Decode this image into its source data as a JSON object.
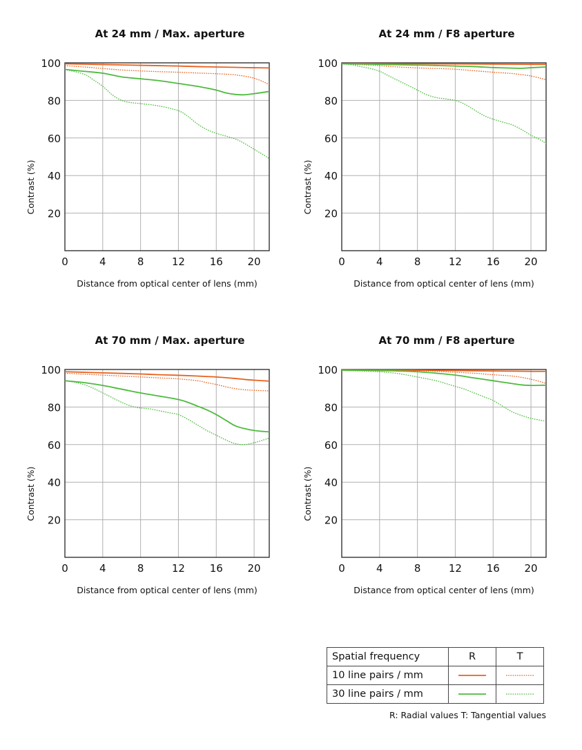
{
  "colors": {
    "ten_lp": "#e8601c",
    "thirty_lp": "#4cba3c",
    "axis": "#222222",
    "grid": "#b0b0b0"
  },
  "chart_data": [
    {
      "type": "line",
      "title": "At 24 mm / Max. aperture",
      "xlabel": "Distance from optical center of lens (mm)",
      "ylabel": "Contrast (%)",
      "xlim": [
        0,
        21.6
      ],
      "ylim": [
        0,
        100
      ],
      "xticks": [
        0,
        4,
        8,
        12,
        16,
        20
      ],
      "yticks": [
        20,
        40,
        60,
        80,
        100
      ],
      "grid": true,
      "series": [
        {
          "key": "10R",
          "x": [
            0,
            2,
            4,
            6,
            8,
            10,
            12,
            14,
            16,
            18,
            20,
            21.6
          ],
          "y": [
            99.5,
            99.3,
            99.1,
            98.9,
            98.7,
            98.5,
            98.3,
            98.0,
            97.8,
            97.6,
            97.4,
            97.3
          ]
        },
        {
          "key": "10T",
          "x": [
            0,
            2,
            4,
            6,
            8,
            10,
            12,
            14,
            16,
            18,
            20,
            21.6
          ],
          "y": [
            98.5,
            97.8,
            97.0,
            96.2,
            95.7,
            95.3,
            95.0,
            94.6,
            94.2,
            93.6,
            91.8,
            88.5
          ]
        },
        {
          "key": "30R",
          "x": [
            0,
            2,
            4,
            6,
            8,
            10,
            12,
            14,
            16,
            17,
            18,
            19,
            20,
            21,
            21.6
          ],
          "y": [
            96.5,
            95.5,
            94.5,
            92.5,
            91.5,
            90.5,
            89.0,
            87.5,
            85.5,
            84.0,
            83.2,
            83.0,
            83.6,
            84.3,
            84.8
          ]
        },
        {
          "key": "30T",
          "x": [
            0,
            2,
            3,
            4,
            5,
            6,
            7,
            8,
            10,
            12,
            13,
            14,
            15,
            16,
            18,
            19,
            20,
            21,
            21.6
          ],
          "y": [
            96.5,
            94.0,
            91.0,
            87.5,
            83.0,
            80.0,
            78.8,
            78.3,
            77.0,
            74.5,
            71.5,
            67.5,
            64.5,
            62.5,
            59.5,
            57.0,
            54.0,
            51.0,
            49.0
          ]
        }
      ]
    },
    {
      "type": "line",
      "title": "At 24 mm / F8 aperture",
      "xlabel": "Distance from optical center of lens (mm)",
      "ylabel": "Contrast (%)",
      "xlim": [
        0,
        21.6
      ],
      "ylim": [
        0,
        100
      ],
      "xticks": [
        0,
        4,
        8,
        12,
        16,
        20
      ],
      "yticks": [
        20,
        40,
        60,
        80,
        100
      ],
      "grid": true,
      "series": [
        {
          "key": "10R",
          "x": [
            0,
            4,
            8,
            12,
            16,
            20,
            21.6
          ],
          "y": [
            99.6,
            99.6,
            99.5,
            99.4,
            99.3,
            99.2,
            99.2
          ]
        },
        {
          "key": "10T",
          "x": [
            0,
            2,
            4,
            6,
            8,
            10,
            12,
            14,
            16,
            18,
            20,
            21.6
          ],
          "y": [
            99.5,
            99.0,
            98.5,
            97.8,
            97.3,
            97.0,
            96.6,
            95.8,
            95.0,
            94.3,
            93.0,
            91.0
          ]
        },
        {
          "key": "30R",
          "x": [
            0,
            2,
            4,
            6,
            8,
            10,
            12,
            14,
            16,
            18,
            19,
            20,
            21.6
          ],
          "y": [
            99.5,
            99.4,
            99.2,
            99.0,
            98.8,
            98.6,
            98.3,
            98.0,
            97.5,
            97.2,
            97.1,
            97.4,
            97.8
          ]
        },
        {
          "key": "30T",
          "x": [
            0,
            1,
            2,
            3,
            4,
            5,
            6,
            7,
            8,
            9,
            10,
            11,
            12,
            13,
            14,
            15,
            16,
            17,
            18,
            19,
            20,
            21,
            21.6
          ],
          "y": [
            99.5,
            99.0,
            98.0,
            97.0,
            95.5,
            93.0,
            90.5,
            88.0,
            85.5,
            83.0,
            81.5,
            80.8,
            80.0,
            78.0,
            75.0,
            72.0,
            70.0,
            68.5,
            67.0,
            64.5,
            61.5,
            59.0,
            57.0
          ]
        }
      ]
    },
    {
      "type": "line",
      "title": "At 70 mm / Max. aperture",
      "xlabel": "Distance from optical center of lens (mm)",
      "ylabel": "Contrast (%)",
      "xlim": [
        0,
        21.6
      ],
      "ylim": [
        0,
        100
      ],
      "xticks": [
        0,
        4,
        8,
        12,
        16,
        20
      ],
      "yticks": [
        20,
        40,
        60,
        80,
        100
      ],
      "grid": true,
      "series": [
        {
          "key": "10R",
          "x": [
            0,
            2,
            4,
            6,
            8,
            10,
            12,
            14,
            16,
            18,
            19,
            20,
            21.6
          ],
          "y": [
            98.8,
            98.5,
            98.2,
            97.9,
            97.6,
            97.2,
            96.9,
            96.5,
            96.0,
            95.2,
            94.7,
            94.3,
            93.8
          ]
        },
        {
          "key": "10T",
          "x": [
            0,
            2,
            4,
            6,
            8,
            10,
            12,
            14,
            15,
            16,
            17,
            18,
            19,
            20,
            21,
            21.6
          ],
          "y": [
            98.0,
            97.5,
            97.0,
            96.5,
            96.0,
            95.5,
            95.0,
            94.0,
            93.0,
            92.0,
            90.8,
            89.8,
            89.2,
            88.9,
            88.7,
            88.6
          ]
        },
        {
          "key": "30R",
          "x": [
            0,
            2,
            4,
            6,
            8,
            10,
            12,
            13,
            14,
            15,
            16,
            17,
            18,
            19,
            20,
            21,
            21.6
          ],
          "y": [
            94.0,
            93.0,
            91.5,
            89.5,
            87.5,
            85.8,
            84.0,
            82.5,
            80.5,
            78.5,
            76.0,
            73.0,
            70.0,
            68.5,
            67.5,
            67.0,
            66.8
          ]
        },
        {
          "key": "30T",
          "x": [
            0,
            1,
            2,
            3,
            4,
            5,
            6,
            7,
            8,
            9,
            10,
            11,
            12,
            13,
            14,
            15,
            16,
            17,
            18,
            19,
            20,
            21,
            21.6
          ],
          "y": [
            94.0,
            93.2,
            92.0,
            90.0,
            87.5,
            85.0,
            82.5,
            80.5,
            79.5,
            79.0,
            78.0,
            77.0,
            76.0,
            73.5,
            70.5,
            67.5,
            65.0,
            62.5,
            60.5,
            60.0,
            61.0,
            62.5,
            63.5
          ]
        }
      ]
    },
    {
      "type": "line",
      "title": "At 70 mm / F8 aperture",
      "xlabel": "Distance from optical center of lens (mm)",
      "ylabel": "Contrast (%)",
      "xlim": [
        0,
        21.6
      ],
      "ylim": [
        0,
        100
      ],
      "xticks": [
        0,
        4,
        8,
        12,
        16,
        20
      ],
      "yticks": [
        20,
        40,
        60,
        80,
        100
      ],
      "grid": true,
      "series": [
        {
          "key": "10R",
          "x": [
            0,
            4,
            8,
            12,
            16,
            20,
            21.6
          ],
          "y": [
            99.8,
            99.7,
            99.6,
            99.4,
            99.2,
            99.0,
            99.0
          ]
        },
        {
          "key": "10T",
          "x": [
            0,
            4,
            8,
            10,
            12,
            14,
            16,
            18,
            19,
            20,
            21,
            21.6
          ],
          "y": [
            99.6,
            99.5,
            99.3,
            99.0,
            98.5,
            98.0,
            97.2,
            96.5,
            95.8,
            94.8,
            93.5,
            92.5
          ]
        },
        {
          "key": "30R",
          "x": [
            0,
            4,
            6,
            8,
            10,
            12,
            14,
            16,
            18,
            19,
            20,
            21,
            21.6
          ],
          "y": [
            99.6,
            99.4,
            99.2,
            98.8,
            98.0,
            97.0,
            95.5,
            94.0,
            92.5,
            91.8,
            91.5,
            91.6,
            91.6
          ]
        },
        {
          "key": "30T",
          "x": [
            0,
            2,
            4,
            6,
            8,
            10,
            11,
            12,
            13,
            14,
            15,
            16,
            17,
            18,
            19,
            20,
            21,
            21.6
          ],
          "y": [
            99.5,
            99.2,
            98.8,
            97.8,
            96.0,
            94.0,
            92.5,
            91.0,
            89.5,
            87.5,
            85.5,
            83.5,
            80.5,
            77.5,
            75.5,
            74.0,
            73.0,
            72.5
          ]
        }
      ]
    }
  ],
  "legend": {
    "header": "Spatial frequency",
    "col_r": "R",
    "col_t": "T",
    "row_10": "10 line pairs / mm",
    "row_30": "30 line pairs / mm",
    "footnote": "R: Radial values  T: Tangential values"
  }
}
